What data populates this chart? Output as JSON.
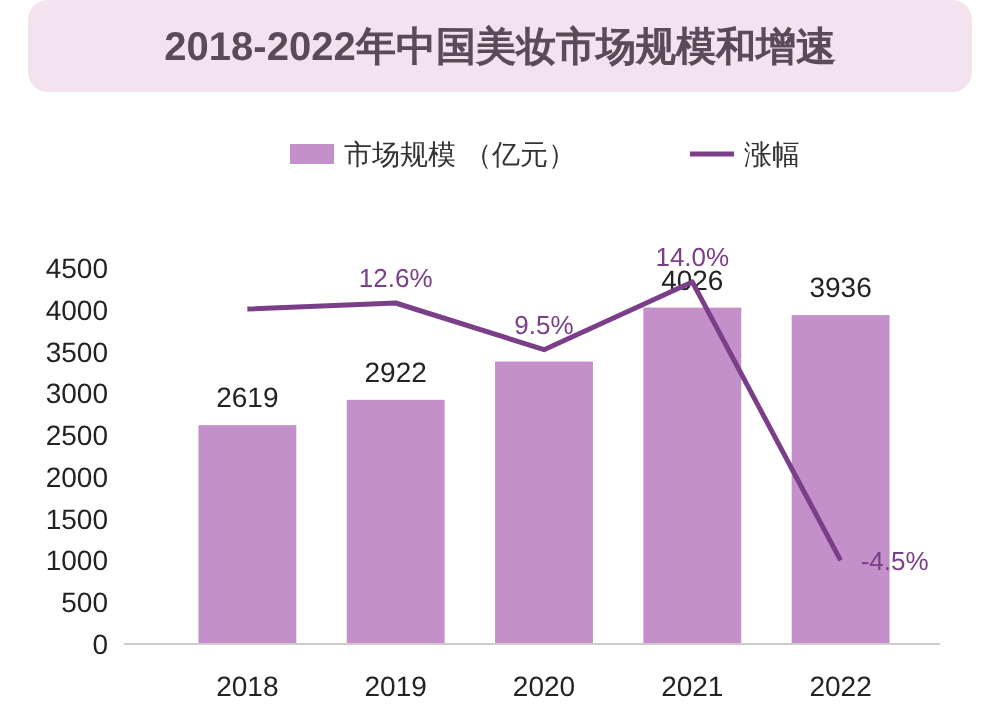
{
  "chart_data": {
    "type": "bar",
    "title": "2018-2022年中国美妆市场规模和增速",
    "categories": [
      "2018",
      "2019",
      "2020",
      "2021",
      "2022"
    ],
    "series": [
      {
        "name": "市场规模 （亿元）",
        "color": "#c490c9",
        "values": [
          2619,
          2922,
          3380,
          4026,
          3936
        ],
        "value_labels": [
          "2619",
          "2922",
          null,
          "4026",
          "3936"
        ]
      },
      {
        "name": "涨幅",
        "type": "line",
        "axis": "y2",
        "color": "#7b3f8a",
        "values": [
          12.2,
          12.6,
          9.5,
          14.0,
          -4.5
        ],
        "value_labels": [
          null,
          "12.6%",
          "9.5%",
          "14.0%",
          "-4.5%"
        ]
      }
    ],
    "ylim": [
      0,
      4500
    ],
    "yticks": [
      0,
      500,
      1000,
      1500,
      2000,
      2500,
      3000,
      3500,
      4000,
      4500
    ],
    "legend": "top",
    "grid": false,
    "tick_labels": "xy"
  }
}
